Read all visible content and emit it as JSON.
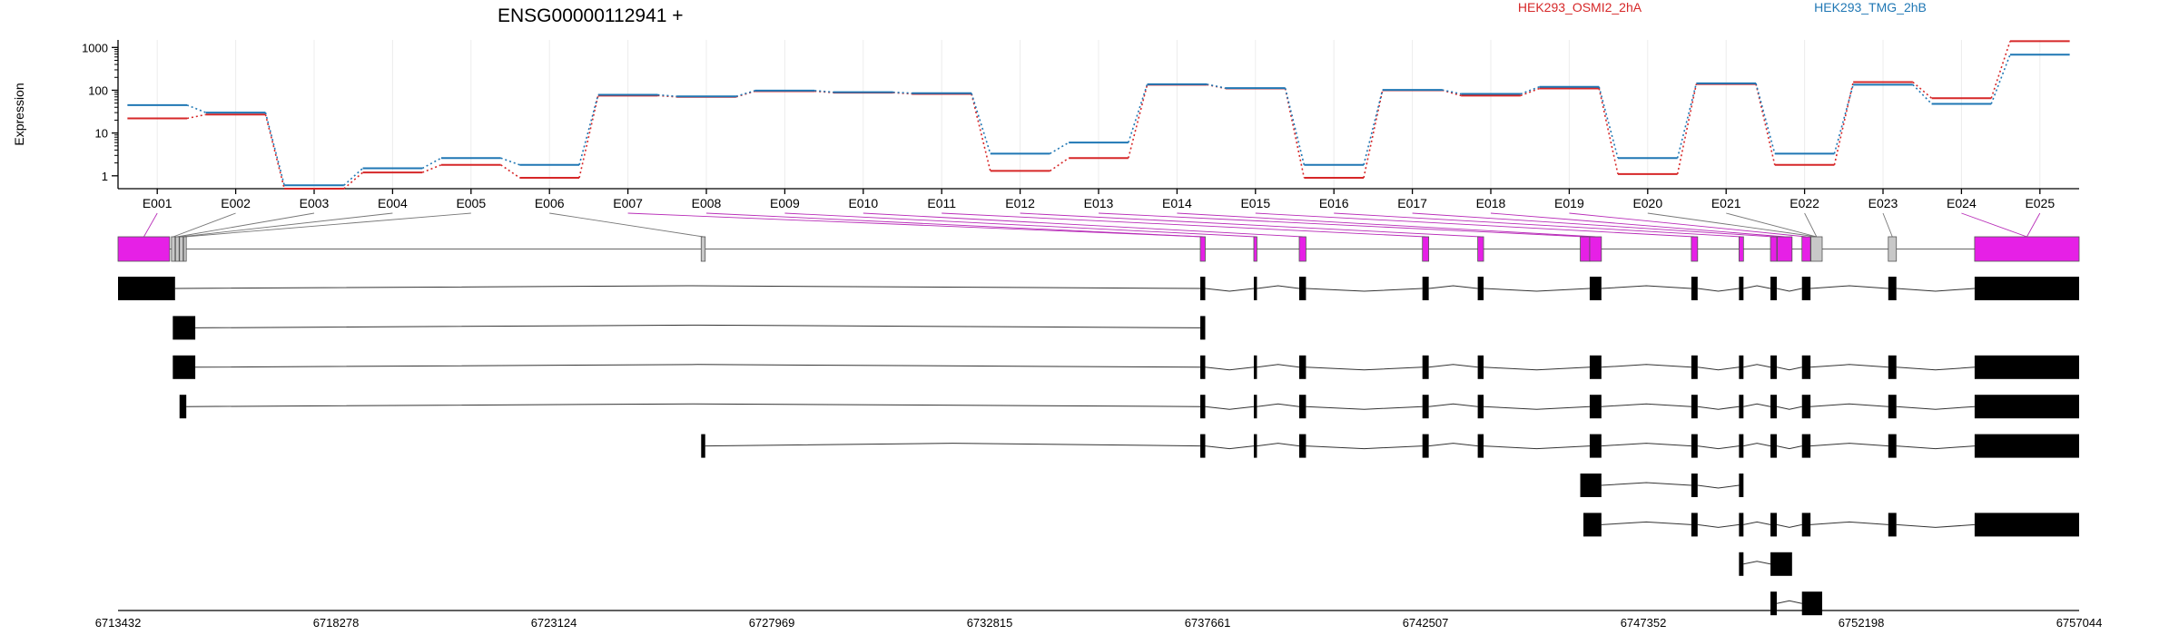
{
  "chart_data": {
    "type": "line",
    "title": "ENSG00000112941 +",
    "ylabel": "Expression",
    "y_scale": "log",
    "ylim": [
      0.5,
      1500
    ],
    "y_ticks": [
      {
        "value": 1,
        "label": "1"
      },
      {
        "value": 10,
        "label": "10"
      },
      {
        "value": 100,
        "label": "100"
      },
      {
        "value": 1000,
        "label": "1000"
      }
    ],
    "categories": [
      "E001",
      "E002",
      "E003",
      "E004",
      "E005",
      "E006",
      "E007",
      "E008",
      "E009",
      "E010",
      "E011",
      "E012",
      "E013",
      "E014",
      "E015",
      "E016",
      "E017",
      "E018",
      "E019",
      "E020",
      "E021",
      "E022",
      "E023",
      "E024",
      "E025"
    ],
    "series": [
      {
        "name": "HEK293_OSMI2_2hA",
        "color": "#d62728",
        "values": [
          22,
          27,
          0.5,
          1.2,
          1.8,
          0.9,
          75,
          70,
          95,
          88,
          82,
          1.3,
          2.6,
          135,
          110,
          0.9,
          100,
          75,
          110,
          1.1,
          140,
          1.8,
          155,
          65,
          1400
        ]
      },
      {
        "name": "HEK293_TMG_2hB",
        "color": "#1f77b4",
        "values": [
          45,
          30,
          0.6,
          1.5,
          2.6,
          1.8,
          78,
          72,
          98,
          90,
          85,
          3.3,
          6.0,
          138,
          112,
          1.8,
          102,
          82,
          120,
          2.6,
          145,
          3.3,
          135,
          48,
          680
        ]
      }
    ],
    "legend_placement": "top",
    "grid": "vertical",
    "genomic_axis": {
      "range": [
        6713432,
        6757044
      ],
      "tick_labels": [
        "6713432",
        "6718278",
        "6723124",
        "6727969",
        "6732815",
        "6737661",
        "6742507",
        "6747352",
        "6752198",
        "6757044"
      ]
    },
    "exon_map": {
      "exons": [
        {
          "start": 6713432,
          "end": 6714580,
          "color": "#e620e6"
        },
        {
          "start": 6714620,
          "end": 6714700,
          "color": "#c8c8c8"
        },
        {
          "start": 6714710,
          "end": 6714790,
          "color": "#c8c8c8"
        },
        {
          "start": 6714800,
          "end": 6714880,
          "color": "#c8c8c8"
        },
        {
          "start": 6714890,
          "end": 6714950,
          "color": "#c8c8c8"
        },
        {
          "start": 6726400,
          "end": 6726490,
          "color": "#c8c8c8"
        },
        {
          "start": 6737500,
          "end": 6737610,
          "color": "#e620e6"
        },
        {
          "start": 6738690,
          "end": 6738760,
          "color": "#e620e6"
        },
        {
          "start": 6739700,
          "end": 6739850,
          "color": "#e620e6"
        },
        {
          "start": 6742440,
          "end": 6742580,
          "color": "#e620e6"
        },
        {
          "start": 6743670,
          "end": 6743800,
          "color": "#e620e6"
        },
        {
          "start": 6745950,
          "end": 6746160,
          "color": "#e620e6"
        },
        {
          "start": 6746160,
          "end": 6746420,
          "color": "#e620e6"
        },
        {
          "start": 6748420,
          "end": 6748560,
          "color": "#e620e6"
        },
        {
          "start": 6749480,
          "end": 6749580,
          "color": "#e620e6"
        },
        {
          "start": 6750180,
          "end": 6750320,
          "color": "#e620e6"
        },
        {
          "start": 6750330,
          "end": 6750660,
          "color": "#e620e6"
        },
        {
          "start": 6750880,
          "end": 6751070,
          "color": "#e620e6"
        },
        {
          "start": 6751080,
          "end": 6751330,
          "color": "#c8c8c8"
        },
        {
          "start": 6752800,
          "end": 6752980,
          "color": "#c8c8c8"
        },
        {
          "start": 6754720,
          "end": 6757044,
          "color": "#e620e6"
        }
      ]
    },
    "transcripts": [
      {
        "exons": [
          [
            6713432,
            6714700
          ],
          [
            6737500,
            6737610
          ],
          [
            6738690,
            6738760
          ],
          [
            6739700,
            6739850
          ],
          [
            6742440,
            6742580
          ],
          [
            6743670,
            6743800
          ],
          [
            6746160,
            6746420
          ],
          [
            6748420,
            6748560
          ],
          [
            6749480,
            6749580
          ],
          [
            6750180,
            6750320
          ],
          [
            6750880,
            6751070
          ],
          [
            6752800,
            6752980
          ],
          [
            6754720,
            6757044
          ]
        ]
      },
      {
        "exons": [
          [
            6714650,
            6715150
          ],
          [
            6737500,
            6737610
          ]
        ]
      },
      {
        "exons": [
          [
            6714650,
            6715150
          ],
          [
            6737500,
            6737610
          ],
          [
            6738690,
            6738760
          ],
          [
            6739700,
            6739850
          ],
          [
            6742440,
            6742580
          ],
          [
            6743670,
            6743800
          ],
          [
            6746160,
            6746420
          ],
          [
            6748420,
            6748560
          ],
          [
            6749480,
            6749580
          ],
          [
            6750180,
            6750320
          ],
          [
            6750880,
            6751070
          ],
          [
            6752800,
            6752980
          ],
          [
            6754720,
            6757044
          ]
        ]
      },
      {
        "exons": [
          [
            6714800,
            6714950
          ],
          [
            6737500,
            6737610
          ],
          [
            6738690,
            6738760
          ],
          [
            6739700,
            6739850
          ],
          [
            6742440,
            6742580
          ],
          [
            6743670,
            6743800
          ],
          [
            6746160,
            6746420
          ],
          [
            6748420,
            6748560
          ],
          [
            6749480,
            6749580
          ],
          [
            6750180,
            6750320
          ],
          [
            6750880,
            6751070
          ],
          [
            6752800,
            6752980
          ],
          [
            6754720,
            6757044
          ]
        ]
      },
      {
        "exons": [
          [
            6726400,
            6726490
          ],
          [
            6737500,
            6737610
          ],
          [
            6738690,
            6738760
          ],
          [
            6739700,
            6739850
          ],
          [
            6742440,
            6742580
          ],
          [
            6743670,
            6743800
          ],
          [
            6746160,
            6746420
          ],
          [
            6748420,
            6748560
          ],
          [
            6749480,
            6749580
          ],
          [
            6750180,
            6750320
          ],
          [
            6750880,
            6751070
          ],
          [
            6752800,
            6752980
          ],
          [
            6754720,
            6757044
          ]
        ]
      },
      {
        "exons": [
          [
            6745950,
            6746420
          ],
          [
            6748420,
            6748560
          ],
          [
            6749480,
            6749580
          ]
        ]
      },
      {
        "exons": [
          [
            6746020,
            6746420
          ],
          [
            6748420,
            6748560
          ],
          [
            6749480,
            6749580
          ],
          [
            6750180,
            6750320
          ],
          [
            6750880,
            6751070
          ],
          [
            6752800,
            6752980
          ],
          [
            6754720,
            6757044
          ]
        ]
      },
      {
        "exons": [
          [
            6749480,
            6749580
          ],
          [
            6750180,
            6750660
          ]
        ]
      },
      {
        "exons": [
          [
            6750180,
            6750320
          ],
          [
            6750880,
            6751330
          ]
        ]
      }
    ]
  }
}
